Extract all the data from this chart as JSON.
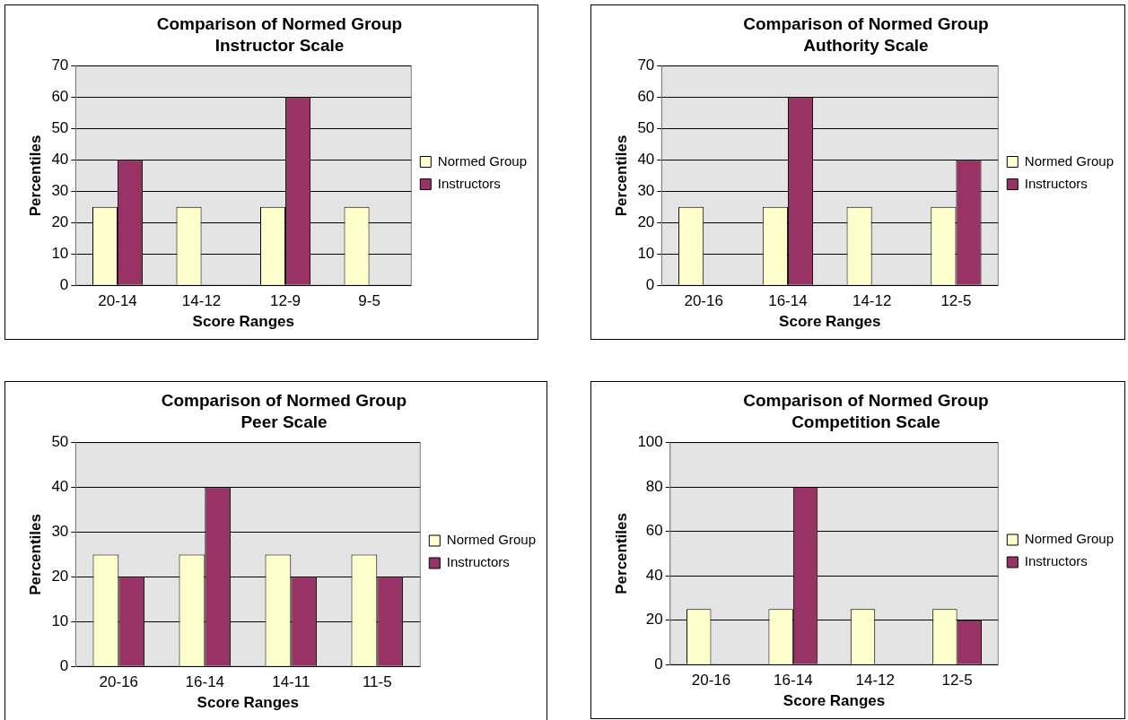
{
  "chart_data": [
    {
      "type": "bar",
      "title": "Comparison of Normed Group",
      "subtitle": "Instructor Scale",
      "xlabel": "Score Ranges",
      "ylabel": "Percentiles",
      "categories": [
        "20-14",
        "14-12",
        "12-9",
        "9-5"
      ],
      "series": [
        {
          "name": "Normed Group",
          "color": "#ffffcc",
          "values": [
            25,
            25,
            25,
            25
          ]
        },
        {
          "name": "Instructors",
          "color": "#993366",
          "values": [
            40,
            0,
            60,
            0
          ]
        }
      ],
      "ylim": [
        0,
        70
      ],
      "yticks": [
        0,
        10,
        20,
        30,
        40,
        50,
        60,
        70
      ],
      "grid": "y",
      "legend": "right"
    },
    {
      "type": "bar",
      "title": "Comparison of Normed Group",
      "subtitle": "Authority Scale",
      "xlabel": "Score Ranges",
      "ylabel": "Percentiles",
      "categories": [
        "20-16",
        "16-14",
        "14-12",
        "12-5"
      ],
      "series": [
        {
          "name": "Normed Group",
          "color": "#ffffcc",
          "values": [
            25,
            25,
            25,
            25
          ]
        },
        {
          "name": "Instructors",
          "color": "#993366",
          "values": [
            0,
            60,
            0,
            40
          ]
        }
      ],
      "ylim": [
        0,
        70
      ],
      "yticks": [
        0,
        10,
        20,
        30,
        40,
        50,
        60,
        70
      ],
      "grid": "y",
      "legend": "right"
    },
    {
      "type": "bar",
      "title": "Comparison of Normed Group",
      "subtitle": "Peer Scale",
      "xlabel": "Score Ranges",
      "ylabel": "Percentiles",
      "categories": [
        "20-16",
        "16-14",
        "14-11",
        "11-5"
      ],
      "series": [
        {
          "name": "Normed Group",
          "color": "#ffffcc",
          "values": [
            25,
            25,
            25,
            25
          ]
        },
        {
          "name": "Instructors",
          "color": "#993366",
          "values": [
            20,
            40,
            20,
            20
          ]
        }
      ],
      "ylim": [
        0,
        50
      ],
      "yticks": [
        0,
        10,
        20,
        30,
        40,
        50
      ],
      "grid": "y",
      "legend": "right"
    },
    {
      "type": "bar",
      "title": "Comparison of Normed Group",
      "subtitle": "Competition Scale",
      "xlabel": "Score Ranges",
      "ylabel": "Percentiles",
      "categories": [
        "20-16",
        "16-14",
        "14-12",
        "12-5"
      ],
      "series": [
        {
          "name": "Normed Group",
          "color": "#ffffcc",
          "values": [
            25,
            25,
            25,
            25
          ]
        },
        {
          "name": "Instructors",
          "color": "#993366",
          "values": [
            0,
            80,
            0,
            20
          ]
        }
      ],
      "ylim": [
        0,
        100
      ],
      "yticks": [
        0,
        20,
        40,
        60,
        80,
        100
      ],
      "grid": "y",
      "legend": "right"
    }
  ]
}
